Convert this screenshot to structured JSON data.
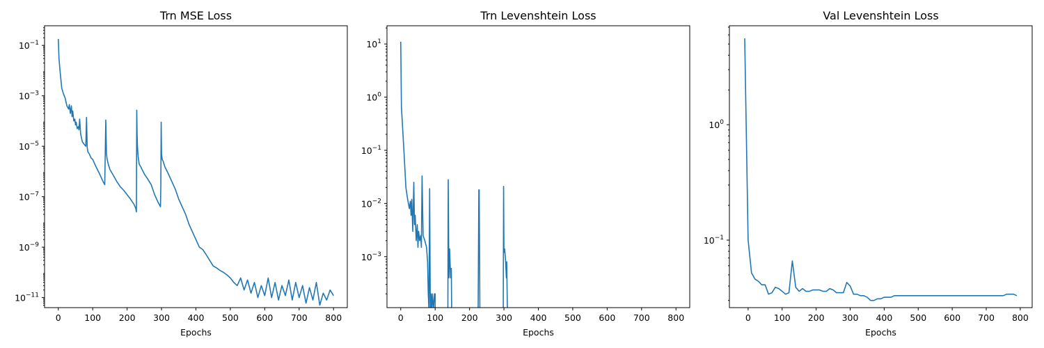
{
  "colors": {
    "series": "#1f77b4"
  },
  "chart_data": [
    {
      "type": "line",
      "title": "Trn MSE Loss",
      "xlabel": "Epochs",
      "ylabel": "",
      "yscale": "log",
      "xlim": [
        -40,
        840
      ],
      "ylim": [
        4e-12,
        0.6
      ],
      "xticks": [
        0,
        100,
        200,
        300,
        400,
        500,
        600,
        700,
        800
      ],
      "xtick_labels": [
        "0",
        "100",
        "200",
        "300",
        "400",
        "500",
        "600",
        "700",
        "800"
      ],
      "yticks": [
        {
          "mant": "10",
          "exp": "−1"
        },
        {
          "mant": "10",
          "exp": "−3"
        },
        {
          "mant": "10",
          "exp": "−5"
        },
        {
          "mant": "10",
          "exp": "−7"
        },
        {
          "mant": "10",
          "exp": "−9"
        },
        {
          "mant": "10",
          "exp": "−11"
        }
      ],
      "ytick_values": [
        0.1,
        0.001,
        1e-05,
        1e-07,
        1e-09,
        1e-11
      ],
      "grid": false,
      "series": [
        {
          "x": [
            0,
            2,
            5,
            10,
            15,
            20,
            25,
            30,
            32,
            35,
            38,
            40,
            42,
            45,
            48,
            50,
            52,
            55,
            58,
            60,
            62,
            65,
            70,
            75,
            80,
            82,
            84,
            86,
            90,
            95,
            100,
            110,
            120,
            130,
            135,
            138,
            140,
            142,
            145,
            150,
            160,
            170,
            180,
            190,
            200,
            210,
            220,
            225,
            227,
            228,
            229,
            230,
            232,
            235,
            240,
            250,
            260,
            270,
            280,
            290,
            295,
            297,
            298,
            299,
            300,
            302,
            305,
            310,
            320,
            330,
            340,
            350,
            360,
            370,
            380,
            390,
            400,
            410,
            420,
            430,
            440,
            450,
            460,
            470,
            480,
            490,
            500,
            510,
            520,
            530,
            540,
            550,
            560,
            570,
            580,
            590,
            600,
            610,
            620,
            630,
            640,
            650,
            660,
            670,
            680,
            690,
            700,
            710,
            720,
            730,
            740,
            750,
            760,
            770,
            780,
            790,
            800
          ],
          "y": [
            0.18,
            0.03,
            0.01,
            0.002,
            0.0012,
            0.0008,
            0.0004,
            0.0003,
            0.00045,
            0.0002,
            0.0004,
            0.00015,
            0.00025,
            0.0001,
            0.00012,
            7e-05,
            9e-05,
            5e-05,
            6e-05,
            4.5e-05,
            0.00012,
            3e-05,
            1.5e-05,
            1.2e-05,
            1e-05,
            0.00014,
            9e-06,
            6e-06,
            5e-06,
            3.5e-06,
            3e-06,
            1.5e-06,
            8e-07,
            4e-07,
            3e-07,
            0.00011,
            5e-06,
            3e-06,
            2e-06,
            1.2e-06,
            7e-07,
            4e-07,
            2.5e-07,
            1.8e-07,
            1.2e-07,
            8e-08,
            5e-08,
            3.5e-08,
            2.5e-08,
            0.00027,
            3e-05,
            1e-05,
            4e-06,
            2e-06,
            1.5e-06,
            8e-07,
            5e-07,
            3e-07,
            1.2e-07,
            6e-08,
            4.5e-08,
            4e-08,
            3e-07,
            9e-05,
            5e-06,
            3e-06,
            2.5e-06,
            1.5e-06,
            8e-07,
            4e-07,
            2e-07,
            8e-08,
            4e-08,
            2e-08,
            8e-09,
            4e-09,
            2e-09,
            1e-09,
            8e-10,
            5e-10,
            3e-10,
            1.8e-10,
            1.5e-10,
            1.2e-10,
            1e-10,
            8e-11,
            6e-11,
            4e-11,
            3e-11,
            6e-11,
            2e-11,
            5e-11,
            1.5e-11,
            4e-11,
            1e-11,
            3e-11,
            1.2e-11,
            6e-11,
            1e-11,
            4e-11,
            8e-12,
            3e-11,
            1.2e-11,
            5e-11,
            8e-12,
            4e-11,
            1e-11,
            3e-11,
            6e-12,
            2.5e-11,
            8e-12,
            4e-11,
            5e-12,
            1.5e-11,
            8e-12,
            2e-11,
            1.2e-11
          ]
        }
      ]
    },
    {
      "type": "line",
      "title": "Trn Levenshtein Loss",
      "xlabel": "Epochs",
      "ylabel": "",
      "yscale": "log",
      "xlim": [
        -40,
        840
      ],
      "ylim": [
        0.00011,
        22
      ],
      "xticks": [
        0,
        100,
        200,
        300,
        400,
        500,
        600,
        700,
        800
      ],
      "xtick_labels": [
        "0",
        "100",
        "200",
        "300",
        "400",
        "500",
        "600",
        "700",
        "800"
      ],
      "yticks": [
        {
          "mant": "10",
          "exp": "1"
        },
        {
          "mant": "10",
          "exp": "0"
        },
        {
          "mant": "10",
          "exp": "−1"
        },
        {
          "mant": "10",
          "exp": "−2"
        },
        {
          "mant": "10",
          "exp": "−3"
        }
      ],
      "ytick_values": [
        10,
        1,
        0.1,
        0.01,
        0.001
      ],
      "grid": false,
      "series": [
        {
          "x": [
            0,
            2,
            5,
            10,
            15,
            20,
            25,
            28,
            30,
            32,
            35,
            38,
            40,
            42,
            45,
            48,
            50,
            52,
            55,
            58,
            60,
            62,
            65,
            70,
            75,
            78,
            80,
            82,
            84,
            86,
            88,
            90,
            92,
            95,
            98,
            100,
            100,
            100,
            137,
            138,
            140,
            142,
            145,
            147,
            148,
            148,
            225,
            227,
            228,
            230,
            230,
            298,
            299,
            300,
            302,
            305,
            307,
            308,
            310,
            312
          ],
          "y": [
            11,
            0.65,
            0.3,
            0.08,
            0.02,
            0.012,
            0.008,
            0.011,
            0.006,
            0.012,
            0.003,
            0.025,
            0.004,
            0.006,
            0.002,
            0.004,
            0.0015,
            0.003,
            0.002,
            0.0025,
            0.0015,
            0.033,
            0.0025,
            0.002,
            0.0015,
            0.0008,
            0.0002,
            0.0001,
            0.019,
            0.0001,
            0.0002,
            0.0001,
            0.0002,
            0.0001,
            0.0002,
            0.0002,
            0.0001,
            null,
            0.0001,
            0.028,
            0.0004,
            0.0014,
            0.0004,
            0.0006,
            0.0001,
            null,
            0.0001,
            0.018,
            0.018,
            0.0001,
            null,
            0.0001,
            0.021,
            0.0012,
            0.0014,
            0.0008,
            0.0004,
            0.0008,
            0.0001,
            0.0001
          ]
        }
      ]
    },
    {
      "type": "line",
      "title": "Val Levenshtein Loss",
      "xlabel": "Epochs",
      "ylabel": "",
      "yscale": "log",
      "xlim": [
        -55,
        835
      ],
      "ylim": [
        0.026,
        7.2
      ],
      "xticks": [
        0,
        100,
        200,
        300,
        400,
        500,
        600,
        700,
        800
      ],
      "xtick_labels": [
        "0",
        "100",
        "200",
        "300",
        "400",
        "500",
        "600",
        "700",
        "800"
      ],
      "yticks": [
        {
          "mant": "10",
          "exp": "0"
        },
        {
          "mant": "10",
          "exp": "−1"
        }
      ],
      "ytick_values": [
        1,
        0.1
      ],
      "grid": false,
      "series": [
        {
          "x": [
            -10,
            0,
            10,
            20,
            30,
            40,
            50,
            60,
            70,
            80,
            90,
            100,
            110,
            120,
            130,
            140,
            150,
            160,
            170,
            180,
            190,
            200,
            210,
            220,
            230,
            240,
            250,
            260,
            270,
            280,
            290,
            300,
            310,
            320,
            330,
            340,
            350,
            360,
            370,
            380,
            390,
            400,
            410,
            420,
            430,
            440,
            450,
            460,
            470,
            480,
            490,
            500,
            550,
            600,
            650,
            700,
            750,
            760,
            770,
            780,
            790
          ],
          "y": [
            5.6,
            0.1,
            0.052,
            0.046,
            0.044,
            0.041,
            0.041,
            0.034,
            0.035,
            0.039,
            0.038,
            0.036,
            0.034,
            0.035,
            0.066,
            0.039,
            0.036,
            0.038,
            0.036,
            0.036,
            0.037,
            0.037,
            0.037,
            0.036,
            0.036,
            0.038,
            0.037,
            0.035,
            0.035,
            0.035,
            0.043,
            0.04,
            0.034,
            0.034,
            0.033,
            0.033,
            0.032,
            0.03,
            0.03,
            0.031,
            0.031,
            0.032,
            0.032,
            0.032,
            0.033,
            0.033,
            0.033,
            0.033,
            0.033,
            0.033,
            0.033,
            0.033,
            0.033,
            0.033,
            0.033,
            0.033,
            0.033,
            0.034,
            0.034,
            0.034,
            0.033
          ]
        }
      ]
    }
  ]
}
